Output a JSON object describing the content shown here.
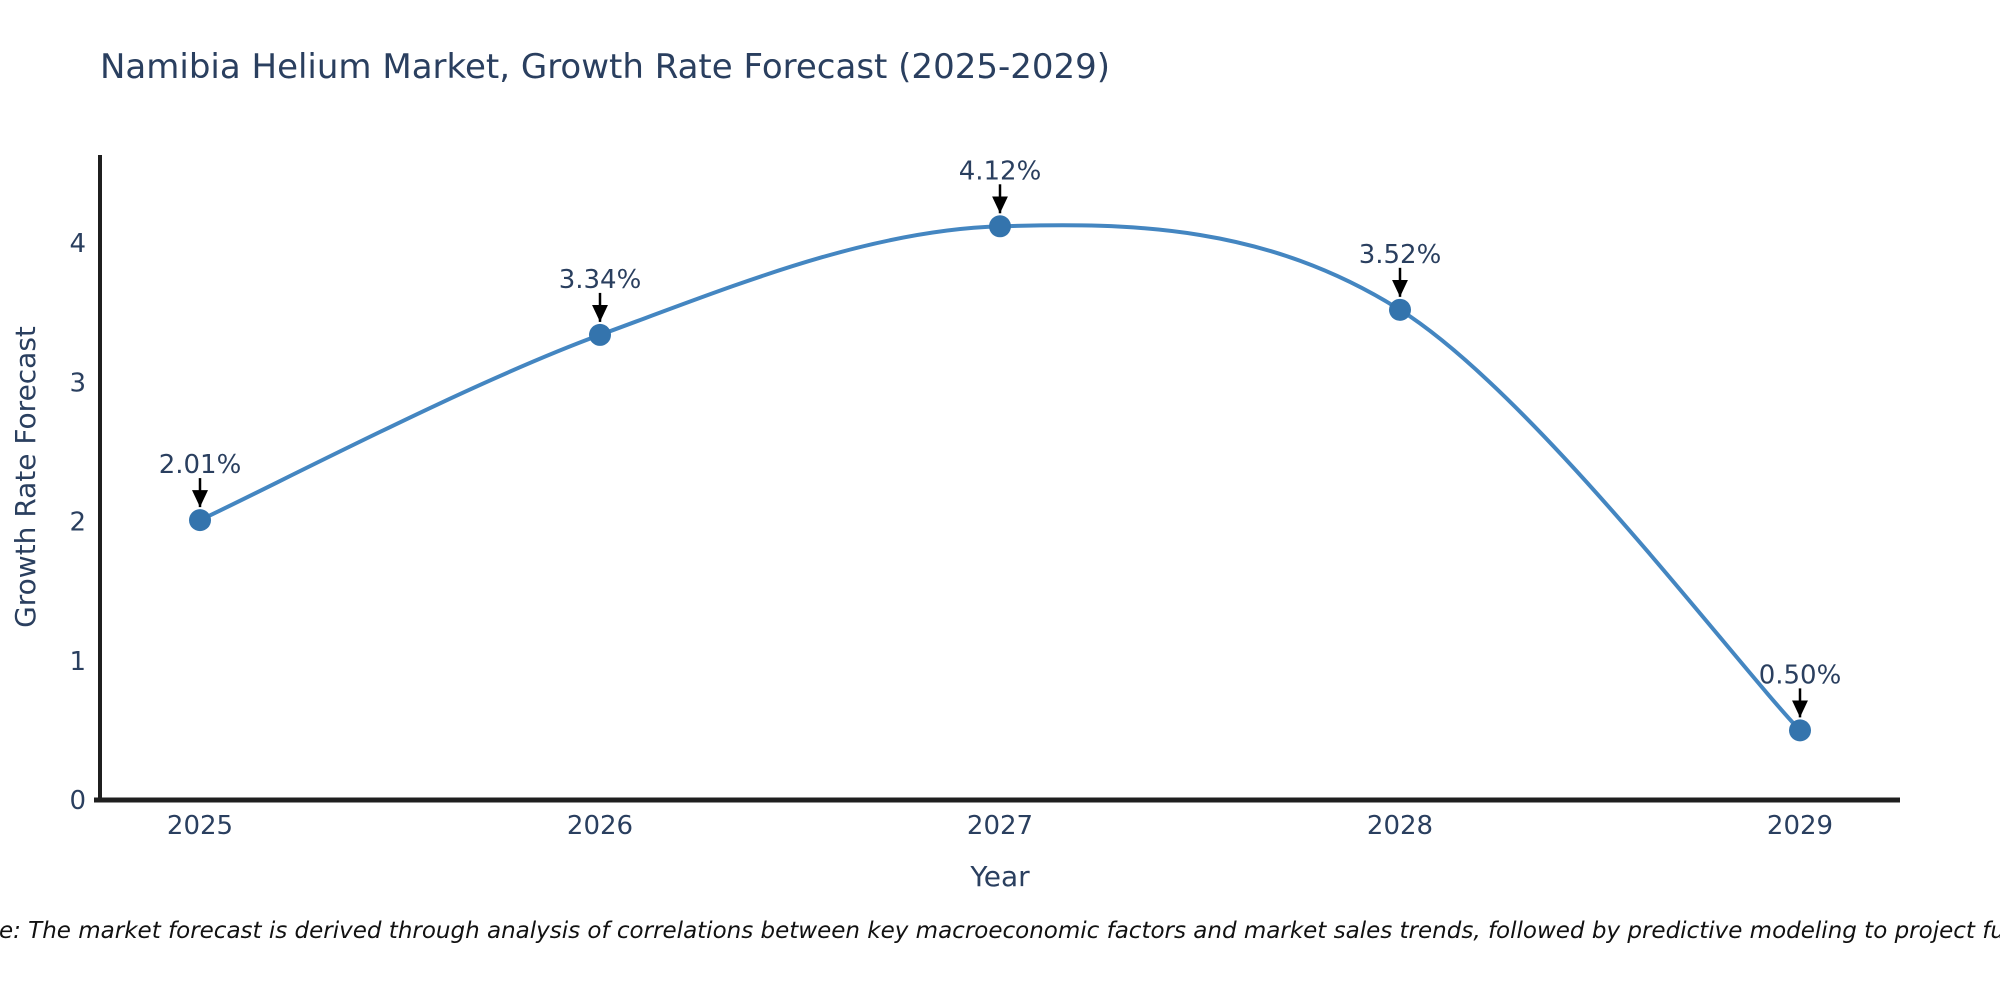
{
  "chart_data": {
    "type": "line",
    "title": "Namibia Helium Market, Growth Rate Forecast (2025-2029)",
    "xlabel": "Year",
    "ylabel": "Growth Rate Forecast",
    "x": [
      2025,
      2026,
      2027,
      2028,
      2029
    ],
    "values": [
      2.01,
      3.34,
      4.12,
      3.52,
      0.5
    ],
    "point_labels": [
      "2.01%",
      "3.34%",
      "4.12%",
      "3.52%",
      "0.50%"
    ],
    "yticks": [
      0,
      1,
      2,
      3,
      4
    ],
    "xlim": [
      2024.75,
      2029.25
    ],
    "ylim": [
      0,
      4.63
    ],
    "grid": false,
    "legend": "none",
    "line_shape": "spline",
    "colors": {
      "line": "#4486c1",
      "marker": "#3474ad",
      "axis": "#1f1f1f",
      "text": "#2a3f5f",
      "annotation_arrow": "#000000",
      "note_text": "#111111",
      "background": "#ffffff"
    },
    "note": "Note: The market forecast is derived through analysis of correlations between key macroeconomic factors and market sales trends, followed by predictive modeling to project future sales."
  }
}
